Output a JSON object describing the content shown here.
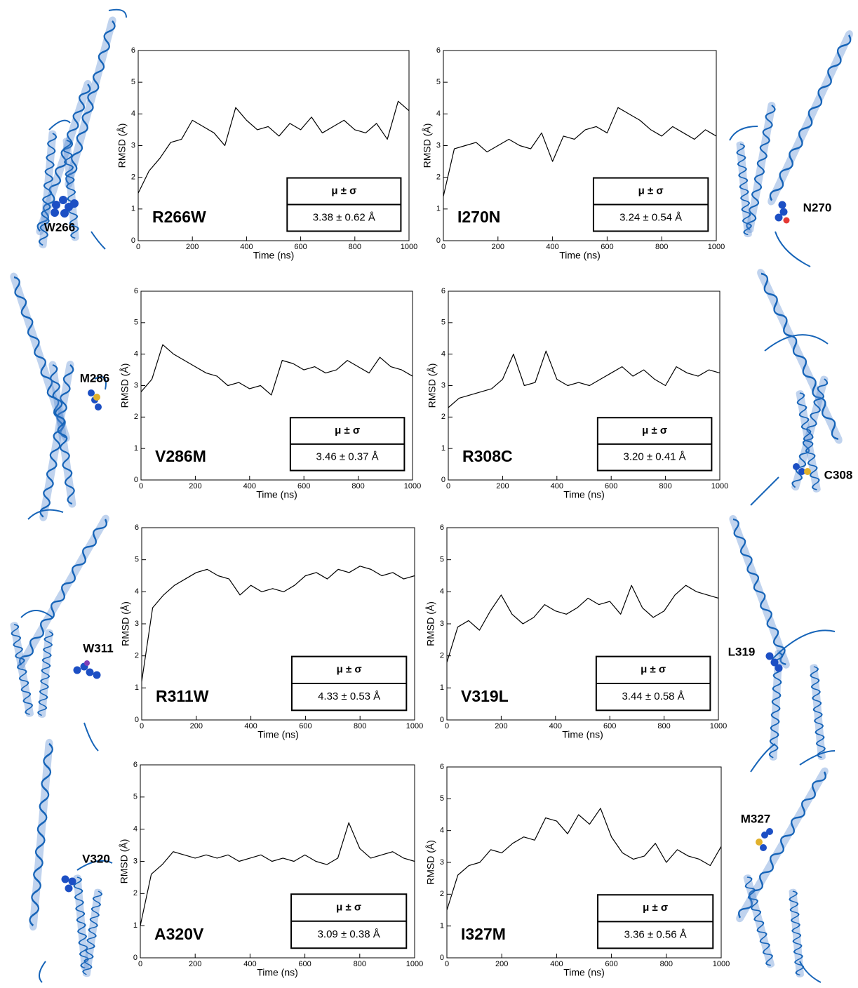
{
  "chart_data": [
    {
      "type": "line",
      "title": "R266W",
      "structure_label": "W266",
      "stats_header": "μ ± σ",
      "stats": "3.38 ± 0.62 Å",
      "xlabel": "Time (ns)",
      "ylabel": "RMSD (Å)",
      "color": "#000000",
      "x": [
        0,
        40,
        80,
        120,
        160,
        200,
        240,
        280,
        320,
        360,
        400,
        440,
        480,
        520,
        560,
        600,
        640,
        680,
        720,
        760,
        800,
        840,
        880,
        920,
        960,
        1000
      ],
      "values": [
        1.5,
        2.2,
        2.6,
        3.1,
        3.2,
        3.8,
        3.6,
        3.4,
        3.0,
        4.2,
        3.8,
        3.5,
        3.6,
        3.3,
        3.7,
        3.5,
        3.9,
        3.4,
        3.6,
        3.8,
        3.5,
        3.4,
        3.7,
        3.2,
        4.4,
        4.1
      ],
      "xlim": [
        0,
        1000
      ],
      "ylim": [
        0,
        6
      ],
      "xticks": [
        0,
        200,
        400,
        600,
        800,
        1000
      ],
      "yticks": [
        0,
        1,
        2,
        3,
        4,
        5,
        6
      ]
    },
    {
      "type": "line",
      "title": "I270N",
      "structure_label": "N270",
      "stats_header": "μ ± σ",
      "stats": "3.24 ± 0.54 Å",
      "xlabel": "Time (ns)",
      "ylabel": "RMSD (Å)",
      "color": "#000000",
      "x": [
        0,
        40,
        80,
        120,
        160,
        200,
        240,
        280,
        320,
        360,
        400,
        440,
        480,
        520,
        560,
        600,
        640,
        680,
        720,
        760,
        800,
        840,
        880,
        920,
        960,
        1000
      ],
      "values": [
        1.4,
        2.9,
        3.0,
        3.1,
        2.8,
        3.0,
        3.2,
        3.0,
        2.9,
        3.4,
        2.5,
        3.3,
        3.2,
        3.5,
        3.6,
        3.4,
        4.2,
        4.0,
        3.8,
        3.5,
        3.3,
        3.6,
        3.4,
        3.2,
        3.5,
        3.3
      ],
      "xlim": [
        0,
        1000
      ],
      "ylim": [
        0,
        6
      ],
      "xticks": [
        0,
        200,
        400,
        600,
        800,
        1000
      ],
      "yticks": [
        0,
        1,
        2,
        3,
        4,
        5,
        6
      ]
    },
    {
      "type": "line",
      "title": "V286M",
      "structure_label": "M286",
      "stats_header": "μ ± σ",
      "stats": "3.46 ± 0.37 Å",
      "xlabel": "Time (ns)",
      "ylabel": "RMSD (Å)",
      "color": "#000000",
      "x": [
        0,
        40,
        80,
        120,
        160,
        200,
        240,
        280,
        320,
        360,
        400,
        440,
        480,
        520,
        560,
        600,
        640,
        680,
        720,
        760,
        800,
        840,
        880,
        920,
        960,
        1000
      ],
      "values": [
        2.8,
        3.2,
        4.3,
        4.0,
        3.8,
        3.6,
        3.4,
        3.3,
        3.0,
        3.1,
        2.9,
        3.0,
        2.7,
        3.8,
        3.7,
        3.5,
        3.6,
        3.4,
        3.5,
        3.8,
        3.6,
        3.4,
        3.9,
        3.6,
        3.5,
        3.3
      ],
      "xlim": [
        0,
        1000
      ],
      "ylim": [
        0,
        6
      ],
      "xticks": [
        0,
        200,
        400,
        600,
        800,
        1000
      ],
      "yticks": [
        0,
        1,
        2,
        3,
        4,
        5,
        6
      ]
    },
    {
      "type": "line",
      "title": "R308C",
      "structure_label": "C308",
      "stats_header": "μ ± σ",
      "stats": "3.20 ± 0.41 Å",
      "xlabel": "Time (ns)",
      "ylabel": "RMSD (Å)",
      "color": "#000000",
      "x": [
        0,
        40,
        80,
        120,
        160,
        200,
        240,
        280,
        320,
        360,
        400,
        440,
        480,
        520,
        560,
        600,
        640,
        680,
        720,
        760,
        800,
        840,
        880,
        920,
        960,
        1000
      ],
      "values": [
        2.3,
        2.6,
        2.7,
        2.8,
        2.9,
        3.2,
        4.0,
        3.0,
        3.1,
        4.1,
        3.2,
        3.0,
        3.1,
        3.0,
        3.2,
        3.4,
        3.6,
        3.3,
        3.5,
        3.2,
        3.0,
        3.6,
        3.4,
        3.3,
        3.5,
        3.4
      ],
      "xlim": [
        0,
        1000
      ],
      "ylim": [
        0,
        6
      ],
      "xticks": [
        0,
        200,
        400,
        600,
        800,
        1000
      ],
      "yticks": [
        0,
        1,
        2,
        3,
        4,
        5,
        6
      ]
    },
    {
      "type": "line",
      "title": "R311W",
      "structure_label": "W311",
      "stats_header": "μ ± σ",
      "stats": "4.33 ± 0.53 Å",
      "xlabel": "Time (ns)",
      "ylabel": "RMSD (Å)",
      "color": "#000000",
      "x": [
        0,
        40,
        80,
        120,
        160,
        200,
        240,
        280,
        320,
        360,
        400,
        440,
        480,
        520,
        560,
        600,
        640,
        680,
        720,
        760,
        800,
        840,
        880,
        920,
        960,
        1000
      ],
      "values": [
        1.2,
        3.5,
        3.9,
        4.2,
        4.4,
        4.6,
        4.7,
        4.5,
        4.4,
        3.9,
        4.2,
        4.0,
        4.1,
        4.0,
        4.2,
        4.5,
        4.6,
        4.4,
        4.7,
        4.6,
        4.8,
        4.7,
        4.5,
        4.6,
        4.4,
        4.5
      ],
      "xlim": [
        0,
        1000
      ],
      "ylim": [
        0,
        6
      ],
      "xticks": [
        0,
        200,
        400,
        600,
        800,
        1000
      ],
      "yticks": [
        0,
        1,
        2,
        3,
        4,
        5,
        6
      ]
    },
    {
      "type": "line",
      "title": "V319L",
      "structure_label": "L319",
      "stats_header": "μ ± σ",
      "stats": "3.44 ± 0.58 Å",
      "xlabel": "Time (ns)",
      "ylabel": "RMSD (Å)",
      "color": "#000000",
      "x": [
        0,
        40,
        80,
        120,
        160,
        200,
        240,
        280,
        320,
        360,
        400,
        440,
        480,
        520,
        560,
        600,
        640,
        680,
        720,
        760,
        800,
        840,
        880,
        920,
        960,
        1000
      ],
      "values": [
        1.8,
        2.9,
        3.1,
        2.8,
        3.4,
        3.9,
        3.3,
        3.0,
        3.2,
        3.6,
        3.4,
        3.3,
        3.5,
        3.8,
        3.6,
        3.7,
        3.3,
        4.2,
        3.5,
        3.2,
        3.4,
        3.9,
        4.2,
        4.0,
        3.9,
        3.8
      ],
      "xlim": [
        0,
        1000
      ],
      "ylim": [
        0,
        6
      ],
      "xticks": [
        0,
        200,
        400,
        600,
        800,
        1000
      ],
      "yticks": [
        0,
        1,
        2,
        3,
        4,
        5,
        6
      ]
    },
    {
      "type": "line",
      "title": "A320V",
      "structure_label": "V320",
      "stats_header": "μ ± σ",
      "stats": "3.09 ± 0.38 Å",
      "xlabel": "Time (ns)",
      "ylabel": "RMSD (Å)",
      "color": "#000000",
      "x": [
        0,
        40,
        80,
        120,
        160,
        200,
        240,
        280,
        320,
        360,
        400,
        440,
        480,
        520,
        560,
        600,
        640,
        680,
        720,
        760,
        800,
        840,
        880,
        920,
        960,
        1000
      ],
      "values": [
        1.0,
        2.6,
        2.9,
        3.3,
        3.2,
        3.1,
        3.2,
        3.1,
        3.2,
        3.0,
        3.1,
        3.2,
        3.0,
        3.1,
        3.0,
        3.2,
        3.0,
        2.9,
        3.1,
        4.2,
        3.4,
        3.1,
        3.2,
        3.3,
        3.1,
        3.0
      ],
      "xlim": [
        0,
        1000
      ],
      "ylim": [
        0,
        6
      ],
      "xticks": [
        0,
        200,
        400,
        600,
        800,
        1000
      ],
      "yticks": [
        0,
        1,
        2,
        3,
        4,
        5,
        6
      ]
    },
    {
      "type": "line",
      "title": "I327M",
      "structure_label": "M327",
      "stats_header": "μ ± σ",
      "stats": "3.36 ± 0.56 Å",
      "xlabel": "Time (ns)",
      "ylabel": "RMSD (Å)",
      "color": "#000000",
      "x": [
        0,
        40,
        80,
        120,
        160,
        200,
        240,
        280,
        320,
        360,
        400,
        440,
        480,
        520,
        560,
        600,
        640,
        680,
        720,
        760,
        800,
        840,
        880,
        920,
        960,
        1000
      ],
      "values": [
        1.5,
        2.6,
        2.9,
        3.0,
        3.4,
        3.3,
        3.6,
        3.8,
        3.7,
        4.4,
        4.3,
        3.9,
        4.5,
        4.2,
        4.7,
        3.8,
        3.3,
        3.1,
        3.2,
        3.6,
        3.0,
        3.4,
        3.2,
        3.1,
        2.9,
        3.5
      ],
      "xlim": [
        0,
        1000
      ],
      "ylim": [
        0,
        6
      ],
      "xticks": [
        0,
        200,
        400,
        600,
        800,
        1000
      ],
      "yticks": [
        0,
        1,
        2,
        3,
        4,
        5,
        6
      ]
    }
  ]
}
